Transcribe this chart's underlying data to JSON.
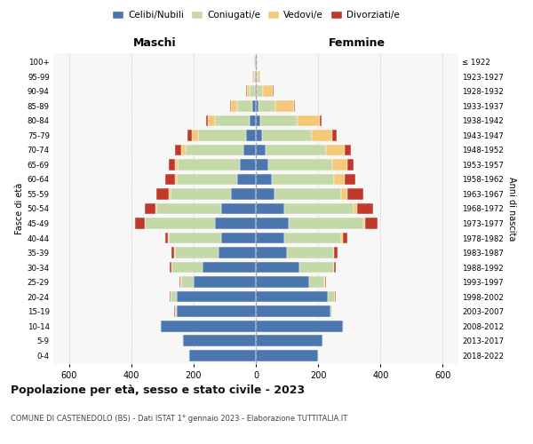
{
  "age_groups": [
    "0-4",
    "5-9",
    "10-14",
    "15-19",
    "20-24",
    "25-29",
    "30-34",
    "35-39",
    "40-44",
    "45-49",
    "50-54",
    "55-59",
    "60-64",
    "65-69",
    "70-74",
    "75-79",
    "80-84",
    "85-89",
    "90-94",
    "95-99",
    "100+"
  ],
  "birth_years": [
    "2018-2022",
    "2013-2017",
    "2008-2012",
    "2003-2007",
    "1998-2002",
    "1993-1997",
    "1988-1992",
    "1983-1987",
    "1978-1982",
    "1973-1977",
    "1968-1972",
    "1963-1967",
    "1958-1962",
    "1953-1957",
    "1948-1952",
    "1943-1947",
    "1938-1942",
    "1933-1937",
    "1928-1932",
    "1923-1927",
    "≤ 1922"
  ],
  "maschi": {
    "celibi": [
      215,
      235,
      305,
      255,
      255,
      200,
      170,
      120,
      110,
      130,
      110,
      80,
      60,
      50,
      40,
      30,
      20,
      10,
      4,
      2,
      2
    ],
    "coniugati": [
      2,
      2,
      3,
      5,
      20,
      40,
      100,
      140,
      170,
      225,
      210,
      195,
      195,
      200,
      185,
      155,
      110,
      50,
      15,
      5,
      2
    ],
    "vedovi": [
      0,
      0,
      0,
      0,
      0,
      1,
      1,
      1,
      1,
      2,
      2,
      3,
      5,
      10,
      15,
      20,
      25,
      20,
      10,
      3,
      1
    ],
    "divorziati": [
      0,
      0,
      0,
      1,
      2,
      3,
      5,
      10,
      10,
      30,
      35,
      40,
      30,
      20,
      20,
      15,
      5,
      2,
      1,
      0,
      0
    ]
  },
  "femmine": {
    "nubili": [
      200,
      215,
      280,
      240,
      230,
      170,
      140,
      100,
      90,
      105,
      90,
      60,
      50,
      40,
      30,
      20,
      15,
      8,
      4,
      2,
      2
    ],
    "coniugate": [
      2,
      2,
      3,
      5,
      25,
      50,
      110,
      150,
      185,
      240,
      225,
      215,
      200,
      205,
      195,
      160,
      120,
      55,
      20,
      5,
      2
    ],
    "vedove": [
      0,
      0,
      0,
      0,
      0,
      1,
      1,
      2,
      3,
      5,
      10,
      20,
      35,
      50,
      60,
      65,
      70,
      60,
      30,
      8,
      3
    ],
    "divorziate": [
      0,
      0,
      0,
      1,
      2,
      3,
      5,
      10,
      15,
      40,
      50,
      50,
      35,
      20,
      20,
      15,
      5,
      3,
      2,
      0,
      0
    ]
  },
  "colors": {
    "celibi": "#4b76b0",
    "coniugati": "#c5d9a8",
    "vedovi": "#f5c97a",
    "divorziati": "#c0392b"
  },
  "legend_labels": [
    "Celibi/Nubili",
    "Coniugati/e",
    "Vedovi/e",
    "Divorziati/e"
  ],
  "title": "Popolazione per età, sesso e stato civile - 2023",
  "subtitle": "COMUNE DI CASTENEDOLO (BS) - Dati ISTAT 1° gennaio 2023 - Elaborazione TUTTITALIA.IT",
  "xlabel_left": "Maschi",
  "xlabel_right": "Femmine",
  "ylabel_left": "Fasce di età",
  "ylabel_right": "Anni di nascita",
  "xlim": 650,
  "xticks": [
    -600,
    -400,
    -200,
    0,
    200,
    400,
    600
  ],
  "xtick_labels": [
    "600",
    "400",
    "200",
    "0",
    "200",
    "400",
    "600"
  ],
  "background_color": "#ffffff",
  "plot_bg_color": "#f7f7f7",
  "grid_color": "#d0d0d0"
}
